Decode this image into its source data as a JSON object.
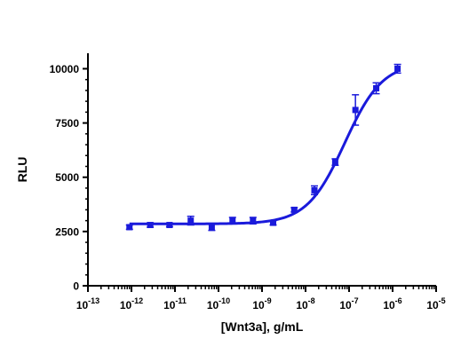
{
  "chart_data": {
    "type": "scatter",
    "title": "",
    "xlabel": "[Wnt3a], g/mL",
    "ylabel": "RLU",
    "x_scale": "log",
    "xlim": [
      1e-13,
      1e-05
    ],
    "ylim": [
      0,
      11000
    ],
    "x_tick_labels": [
      "10",
      "10",
      "10",
      "10",
      "10",
      "10",
      "10",
      "10",
      "10"
    ],
    "x_tick_exponents": [
      "-13",
      "-12",
      "-11",
      "-10",
      "-9",
      "-8",
      "-7",
      "-6",
      "-5"
    ],
    "y_ticks": [
      0,
      2500,
      5000,
      7500,
      10000
    ],
    "y_tick_labels": [
      "0",
      "2500",
      "5000",
      "7500",
      "10000"
    ],
    "grid": false,
    "series": [
      {
        "color": "#1a1adb",
        "marker": "square",
        "x": [
          9e-13,
          2.7e-12,
          7.5e-12,
          2.3e-11,
          7e-11,
          2.1e-10,
          6.2e-10,
          1.8e-09,
          5.5e-09,
          1.6e-08,
          4.8e-08,
          1.4e-07,
          4.2e-07,
          1.3e-06
        ],
        "y": [
          2700,
          2800,
          2800,
          3000,
          2700,
          3000,
          3000,
          2900,
          3500,
          4400,
          5700,
          8100,
          9100,
          10000
        ],
        "error": [
          100,
          100,
          80,
          200,
          150,
          150,
          150,
          100,
          100,
          200,
          150,
          700,
          250,
          200
        ]
      }
    ],
    "fit_curve": {
      "color": "#1a1adb",
      "bottom": 2850,
      "top": 10300,
      "log_ec50": -7.1,
      "hill_slope": 1.0
    }
  }
}
